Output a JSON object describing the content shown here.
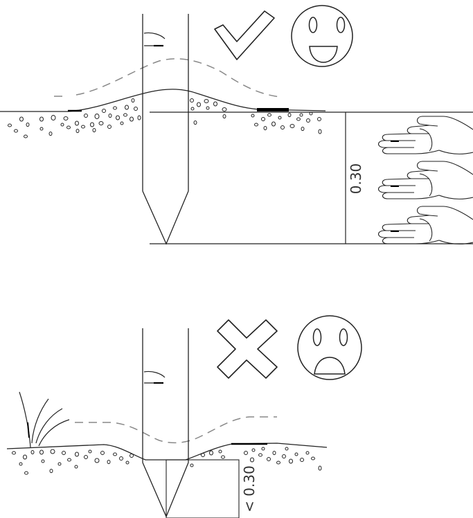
{
  "correct_panel": {
    "status_icon": "checkmark-icon",
    "face_icon": "smiling-face-icon",
    "depth_label": "0.30",
    "hand_icon": "hand-width-icon",
    "hand_count": 3
  },
  "incorrect_panel": {
    "status_icon": "cross-icon",
    "face_icon": "sad-face-icon",
    "depth_label": "< 0.30"
  },
  "colors": {
    "line": "#222222",
    "dashed": "#888888",
    "fill": "#000000"
  }
}
